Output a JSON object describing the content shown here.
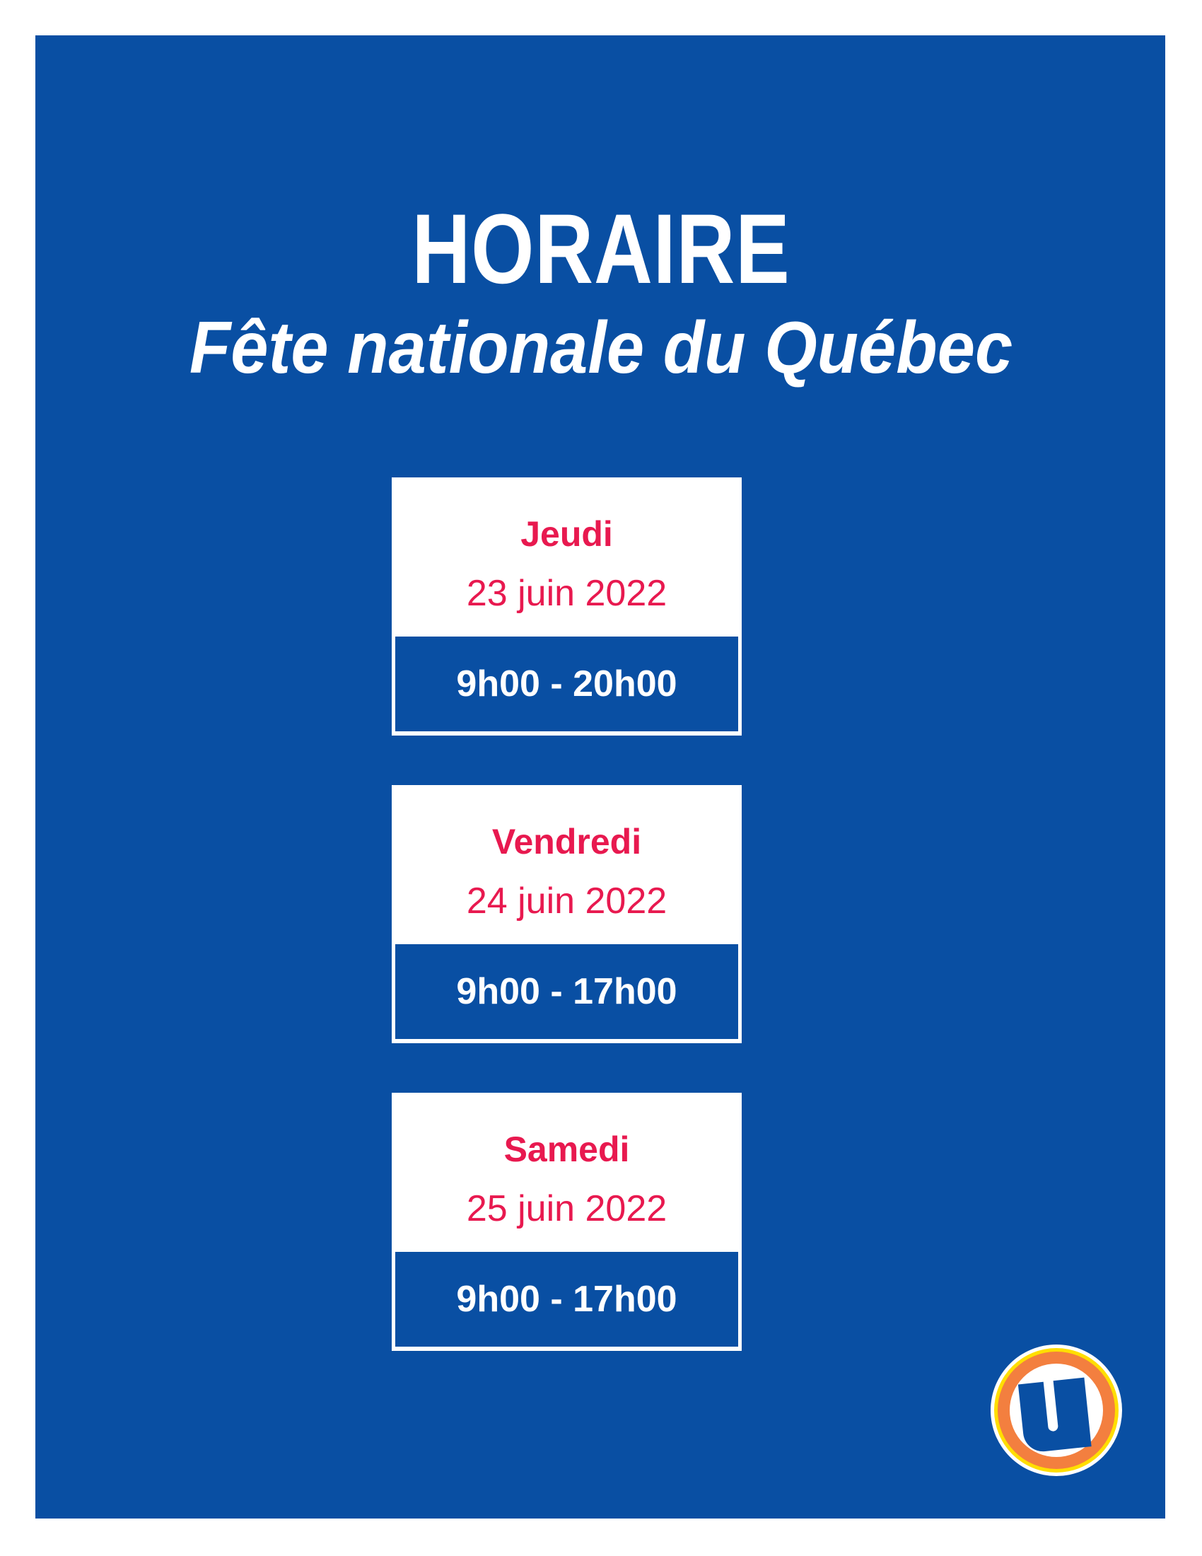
{
  "header": {
    "title": "HORAIRE",
    "subtitle": "Fête nationale du Québec"
  },
  "schedule": [
    {
      "day": "Jeudi",
      "date": "23 juin 2022",
      "hours": "9h00 - 20h00"
    },
    {
      "day": "Vendredi",
      "date": "24 juin 2022",
      "hours": "9h00 - 17h00"
    },
    {
      "day": "Samedi",
      "date": "25 juin 2022",
      "hours": "9h00 - 17h00"
    }
  ],
  "colors": {
    "background": "#094fa3",
    "accent": "#e8194f",
    "logo_orange": "#f37f3f",
    "logo_yellow": "#ffde00"
  },
  "logo": {
    "icon": "u-logo-icon"
  }
}
